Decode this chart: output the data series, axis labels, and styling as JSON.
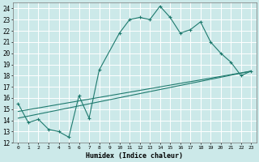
{
  "title": "",
  "xlabel": "Humidex (Indice chaleur)",
  "xlim": [
    -0.5,
    23.5
  ],
  "ylim": [
    12,
    24.5
  ],
  "xticks": [
    0,
    1,
    2,
    3,
    4,
    5,
    6,
    7,
    8,
    9,
    10,
    11,
    12,
    13,
    14,
    15,
    16,
    17,
    18,
    19,
    20,
    21,
    22,
    23
  ],
  "yticks": [
    12,
    13,
    14,
    15,
    16,
    17,
    18,
    19,
    20,
    21,
    22,
    23,
    24
  ],
  "background_color": "#cce9e9",
  "grid_color": "#b0d8d8",
  "line_color": "#1e7a6e",
  "series_main": {
    "x": [
      0,
      1,
      2,
      3,
      4,
      5,
      6,
      7,
      8,
      10,
      11,
      12,
      13,
      14,
      15,
      16,
      17,
      18,
      19,
      20,
      21,
      22,
      23
    ],
    "y": [
      15.5,
      13.8,
      14.1,
      13.2,
      13.0,
      12.5,
      16.2,
      14.2,
      18.5,
      21.8,
      23.0,
      23.2,
      23.0,
      24.2,
      23.2,
      21.8,
      22.1,
      22.8,
      21.0,
      20.0,
      19.2,
      18.0,
      18.4
    ]
  },
  "series_line1": {
    "x": [
      0,
      23
    ],
    "y": [
      14.8,
      18.4
    ]
  },
  "series_line2": {
    "x": [
      0,
      23
    ],
    "y": [
      14.2,
      18.4
    ]
  }
}
